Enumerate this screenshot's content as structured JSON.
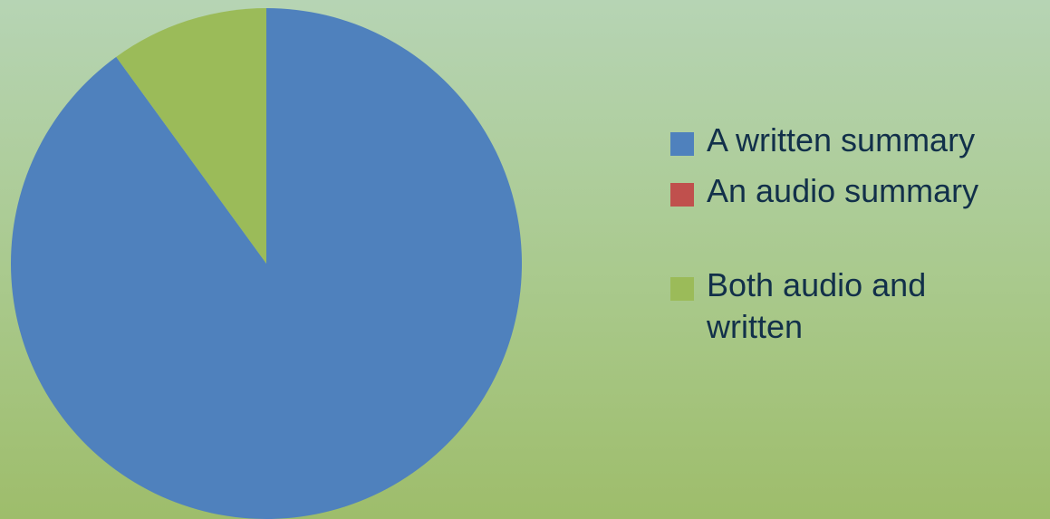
{
  "chart_data": {
    "type": "pie",
    "title": "",
    "legend_position": "right",
    "slices": [
      {
        "label": "A written summary",
        "value": 90,
        "color": "#4f81bd"
      },
      {
        "label": "An audio summary",
        "value": 0,
        "color": "#c0504d"
      },
      {
        "label": "Both audio and written",
        "value": 10,
        "color": "#9bbb59"
      }
    ]
  }
}
